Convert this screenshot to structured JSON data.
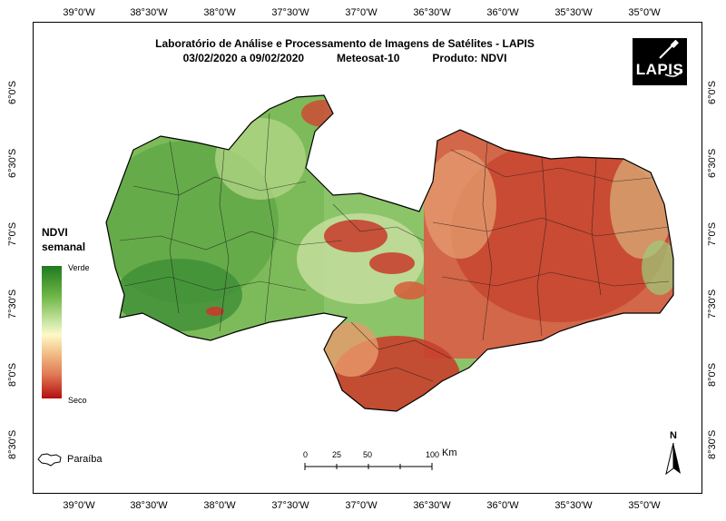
{
  "title": {
    "line1": "Laboratório de Análise e Processamento de Imagens de Satélites - LAPIS",
    "period": "03/02/2020  a 09/02/2020",
    "satellite": "Meteosat-10",
    "product": "Produto: NDVI"
  },
  "logo": {
    "text": "LAPIS"
  },
  "x_ticks": [
    "39°0'W",
    "38°30'W",
    "38°0'W",
    "37°30'W",
    "37°0'W",
    "36°30'W",
    "36°0'W",
    "35°30'W",
    "35°0'W"
  ],
  "y_ticks": [
    "6°0'S",
    "6°30'S",
    "7°0'S",
    "7°30'S",
    "8°0'S",
    "8°30'S"
  ],
  "legend": {
    "title_line1": "NDVI",
    "title_line2": "semanal",
    "top_label": "Verde",
    "bottom_label": "Seco",
    "colors": {
      "green": "#1f7a1f",
      "light": "#fff8c8",
      "red": "#b40f0f"
    }
  },
  "scale_bar": {
    "labels": [
      "0",
      "25",
      "50",
      "100"
    ],
    "unit": "Km"
  },
  "reference": {
    "label": "Paraíba"
  },
  "north_arrow": {
    "label": "N"
  }
}
